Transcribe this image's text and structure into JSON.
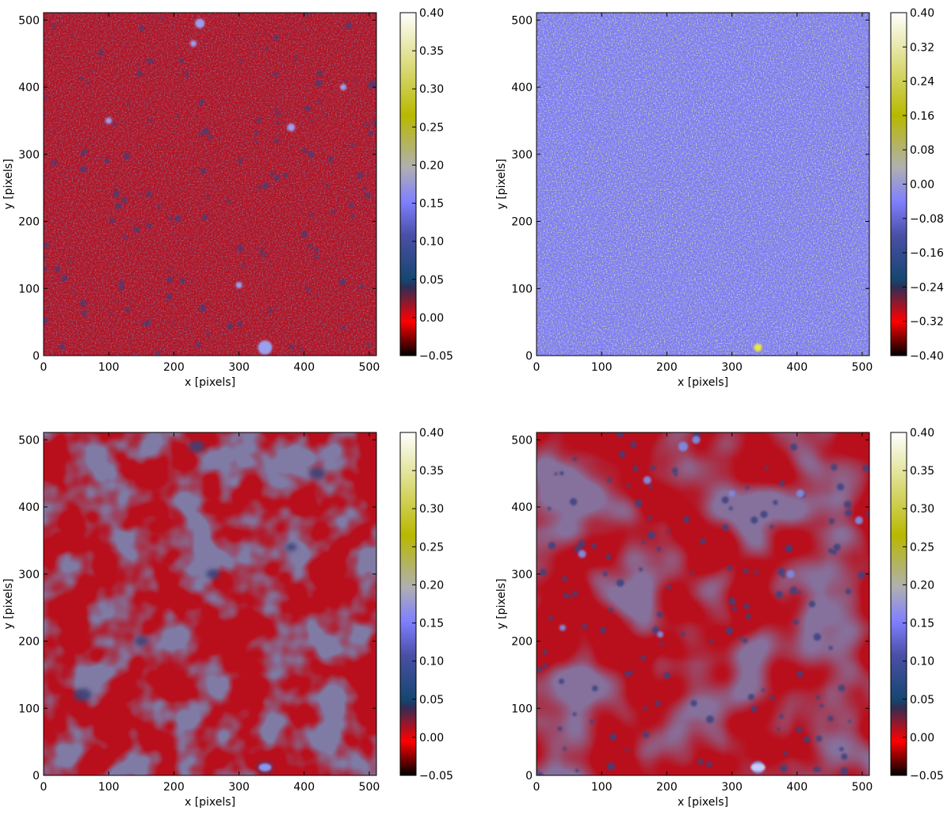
{
  "chart_data": [
    {
      "type": "heatmap",
      "panel": "top-left",
      "title": "",
      "xlabel": "x [pixels]",
      "ylabel": "y [pixels]",
      "xlim": [
        0,
        511
      ],
      "ylim": [
        0,
        511
      ],
      "x_ticks": [
        0,
        100,
        200,
        300,
        400,
        500
      ],
      "y_ticks": [
        0,
        100,
        200,
        300,
        400,
        500
      ],
      "colorbar": {
        "min": -0.05,
        "max": 0.4,
        "ticks": [
          "0.40",
          "0.35",
          "0.30",
          "0.25",
          "0.20",
          "0.15",
          "0.10",
          "0.05",
          "0.00",
          "−0.05"
        ]
      },
      "field": {
        "background_value": 0.01,
        "texture": "fine-noise",
        "blobs": "many-small"
      }
    },
    {
      "type": "heatmap",
      "panel": "top-right",
      "title": "",
      "xlabel": "x [pixels]",
      "ylabel": "y [pixels]",
      "xlim": [
        0,
        511
      ],
      "ylim": [
        0,
        511
      ],
      "x_ticks": [
        0,
        100,
        200,
        300,
        400,
        500
      ],
      "y_ticks": [
        0,
        100,
        200,
        300,
        400,
        500
      ],
      "colorbar": {
        "min": -0.4,
        "max": 0.4,
        "ticks": [
          "0.40",
          "0.32",
          "0.24",
          "0.16",
          "0.08",
          "0.00",
          "−0.08",
          "−0.16",
          "−0.24",
          "−0.32",
          "−0.40"
        ]
      },
      "field": {
        "background_value": -0.04,
        "texture": "fine-noise",
        "blobs": "faint"
      }
    },
    {
      "type": "heatmap",
      "panel": "bottom-left",
      "title": "",
      "xlabel": "x [pixels]",
      "ylabel": "y [pixels]",
      "xlim": [
        0,
        511
      ],
      "ylim": [
        0,
        511
      ],
      "x_ticks": [
        0,
        100,
        200,
        300,
        400,
        500
      ],
      "y_ticks": [
        0,
        100,
        200,
        300,
        400,
        500
      ],
      "colorbar": {
        "min": -0.05,
        "max": 0.4,
        "ticks": [
          "0.40",
          "0.35",
          "0.30",
          "0.25",
          "0.20",
          "0.15",
          "0.10",
          "0.05",
          "0.00",
          "−0.05"
        ]
      },
      "field": {
        "background_value": 0.01,
        "texture": "smooth",
        "blobs": "few-diffuse"
      }
    },
    {
      "type": "heatmap",
      "panel": "bottom-right",
      "title": "",
      "xlabel": "x [pixels]",
      "ylabel": "y [pixels]",
      "xlim": [
        0,
        511
      ],
      "ylim": [
        0,
        511
      ],
      "x_ticks": [
        0,
        100,
        200,
        300,
        400,
        500
      ],
      "y_ticks": [
        0,
        100,
        200,
        300,
        400,
        500
      ],
      "colorbar": {
        "min": -0.05,
        "max": 0.4,
        "ticks": [
          "0.40",
          "0.35",
          "0.30",
          "0.25",
          "0.20",
          "0.15",
          "0.10",
          "0.05",
          "0.00",
          "−0.05"
        ]
      },
      "field": {
        "background_value": 0.01,
        "texture": "smooth",
        "blobs": "many-compact"
      }
    }
  ],
  "colors": {
    "colormap_stops": [
      "#000000",
      "#ff0000",
      "#2e2e55",
      "#15466f",
      "#4a4fa6",
      "#8080ff",
      "#b0b0b0",
      "#b8b800",
      "#ffffff"
    ],
    "frame": "#000000"
  }
}
